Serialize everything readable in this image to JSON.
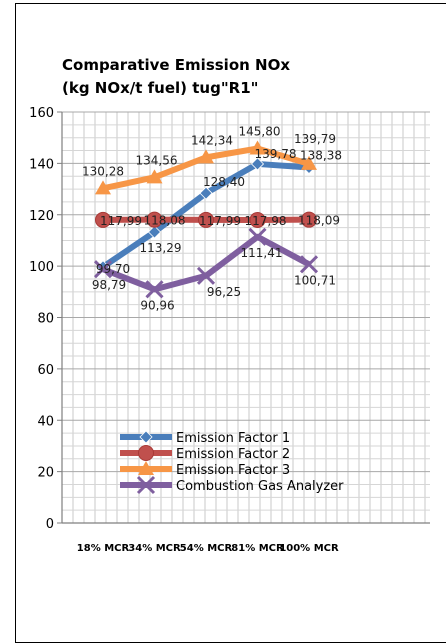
{
  "chart_data": {
    "type": "line",
    "title_line1": "Comparative Emission NOx",
    "title_line2": "(kg NOx/t fuel) tug\"R1\"",
    "categories": [
      "18% MCR",
      "34% MCR",
      "54% MCR",
      "81% MCR",
      "100% MCR"
    ],
    "ylim": [
      0,
      160
    ],
    "yticks": [
      "0",
      "20",
      "40",
      "60",
      "80",
      "100",
      "120",
      "140",
      "160"
    ],
    "grid": true,
    "legend_position": "bottom-left",
    "series": [
      {
        "name": "Emission Factor 1",
        "color": "#4a7ebb",
        "marker": "diamond",
        "values": [
          99.7,
          113.29,
          128.4,
          139.78,
          138.38
        ],
        "labels": [
          "99,70",
          "113,29",
          "128,40",
          "139,78",
          "138,38"
        ]
      },
      {
        "name": "Emission Factor 2",
        "color": "#c0504d",
        "marker": "circle",
        "values": [
          117.99,
          118.08,
          117.99,
          117.98,
          118.09
        ],
        "labels": [
          "117,99",
          "118,08",
          "117,99",
          "117,98",
          "118,09"
        ]
      },
      {
        "name": "Emission Factor 3",
        "color": "#f79646",
        "marker": "triangle",
        "values": [
          130.28,
          134.56,
          142.34,
          145.8,
          139.79
        ],
        "labels": [
          "130,28",
          "134,56",
          "142,34",
          "145,80",
          "139,79"
        ]
      },
      {
        "name": "Combustion Gas Analyzer",
        "color": "#7f5f9f",
        "marker": "x",
        "values": [
          98.79,
          90.96,
          96.25,
          111.41,
          100.71
        ],
        "labels": [
          "98,79",
          "90,96",
          "96,25",
          "111,41",
          "100,71"
        ]
      }
    ]
  }
}
